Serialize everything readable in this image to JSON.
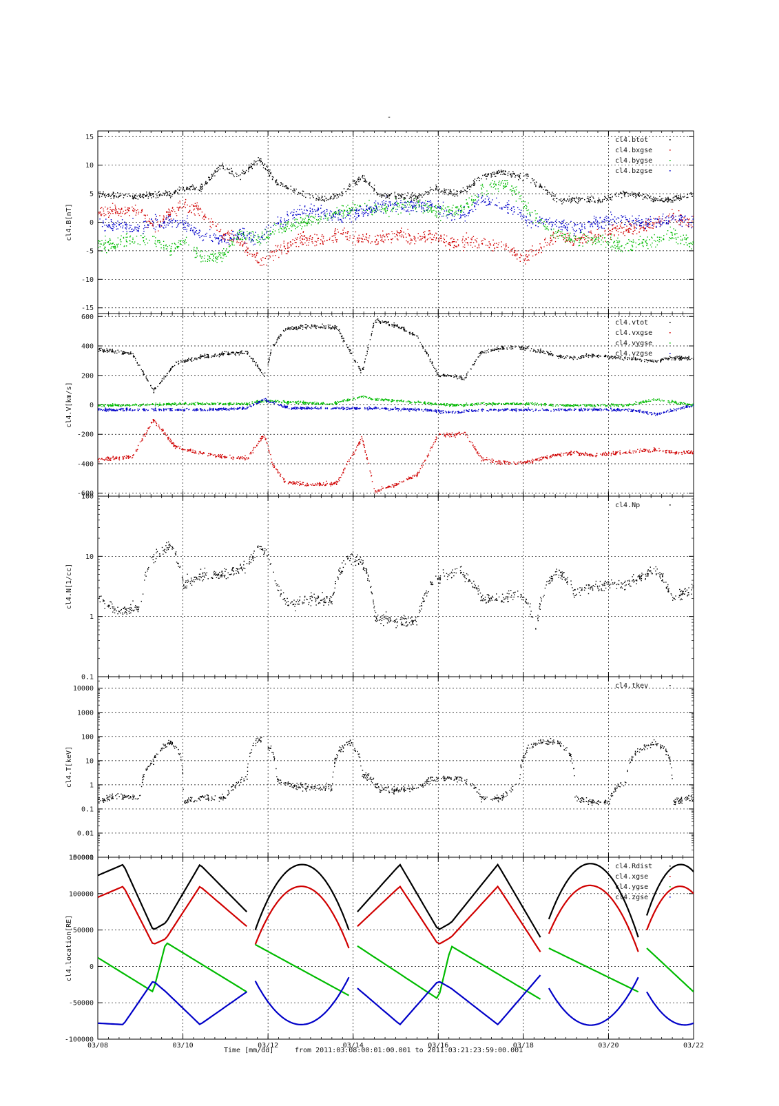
{
  "page": {
    "top_mark": "-"
  },
  "time_axis": {
    "start_day": 8,
    "end_day": 22,
    "ticks": [
      8,
      10,
      12,
      14,
      16,
      18,
      20,
      22
    ],
    "tick_labels": [
      "03/08",
      "03/10",
      "03/12",
      "03/14",
      "03/16",
      "03/18",
      "03/20",
      "03/22"
    ],
    "minor_ticks_per_day": 4
  },
  "footer": {
    "xlabel": "Time [mm/dd]",
    "range_text": "from 2011:03:08:00:01:00.001  to  2011:03:21:23:59:00.001"
  },
  "colors": {
    "black": "#000000",
    "red": "#d00000",
    "blue": "#0000c8",
    "green": "#00bb00"
  },
  "chart_data": [
    {
      "id": "B",
      "type": "scatter",
      "ylabel": "cl4.B[nT]",
      "scale": "linear",
      "ylim": [
        -16,
        16
      ],
      "yticks": [
        -15,
        -10,
        -5,
        0,
        5,
        10,
        15
      ],
      "ytick_labels": [
        "-15",
        "-10",
        "-5",
        "0",
        "5",
        "10",
        "15"
      ],
      "grid": true,
      "legend_position": "top-right",
      "series": [
        {
          "name": "cl4.btot",
          "color": "#000000",
          "noise": 0.5,
          "x": [
            8.0,
            9.0,
            9.3,
            9.7,
            10.0,
            10.4,
            10.9,
            11.3,
            11.8,
            12.2,
            12.8,
            13.3,
            13.7,
            14.2,
            14.6,
            15.1,
            15.5,
            15.9,
            16.4,
            16.7,
            17.0,
            17.5,
            17.9,
            18.1,
            18.8,
            19.2,
            19.8,
            20.3,
            20.7,
            21.1,
            21.5,
            22.0
          ],
          "y": [
            5,
            4.5,
            5,
            5,
            6,
            6,
            10,
            8,
            11,
            7,
            5,
            4,
            5,
            8,
            5,
            4.5,
            4.5,
            6,
            5,
            6,
            8,
            9,
            8,
            8,
            4,
            4,
            4,
            5,
            5,
            4,
            4,
            5
          ]
        },
        {
          "name": "cl4.bxgse",
          "color": "#d00000",
          "noise": 1.0,
          "x": [
            8.0,
            9.0,
            9.3,
            9.7,
            10.0,
            10.4,
            10.9,
            11.3,
            11.8,
            12.2,
            12.8,
            13.3,
            13.7,
            14.2,
            14.6,
            15.1,
            15.5,
            15.9,
            16.4,
            16.7,
            17.0,
            17.5,
            17.9,
            18.1,
            18.8,
            19.2,
            19.8,
            20.3,
            20.7,
            21.1,
            21.5,
            22.0
          ],
          "y": [
            2,
            2,
            -1,
            2,
            3,
            2,
            -2,
            -3,
            -7,
            -5,
            -3,
            -3,
            -2,
            -3,
            -3,
            -2,
            -3,
            -2,
            -4,
            -3,
            -4,
            -4,
            -6,
            -6,
            -2,
            -3,
            -2,
            -1,
            -1,
            0,
            1,
            0
          ]
        },
        {
          "name": "cl4.bygse",
          "color": "#00bb00",
          "noise": 1.0,
          "x": [
            8.0,
            9.0,
            9.3,
            9.7,
            10.0,
            10.4,
            10.9,
            11.3,
            11.8,
            12.2,
            12.8,
            13.3,
            13.7,
            14.2,
            14.6,
            15.1,
            15.5,
            15.9,
            16.4,
            16.7,
            17.0,
            17.5,
            17.9,
            18.1,
            18.8,
            19.2,
            19.8,
            20.3,
            20.7,
            21.1,
            21.5,
            22.0
          ],
          "y": [
            -4,
            -3,
            -3,
            -5,
            -3,
            -6,
            -6,
            -2,
            -3,
            -1,
            0,
            1,
            2,
            3,
            2,
            3,
            3,
            2,
            2,
            3,
            6,
            7,
            5,
            2,
            -2,
            -3,
            -3,
            -4,
            -4,
            -3,
            -2,
            -4
          ]
        },
        {
          "name": "cl4.bzgse",
          "color": "#0000c8",
          "noise": 1.0,
          "x": [
            8.0,
            9.0,
            9.3,
            9.7,
            10.0,
            10.4,
            10.9,
            11.3,
            11.8,
            12.2,
            12.8,
            13.3,
            13.7,
            14.2,
            14.6,
            15.1,
            15.5,
            15.9,
            16.4,
            16.7,
            17.0,
            17.5,
            17.9,
            18.1,
            18.8,
            19.2,
            19.8,
            20.3,
            20.7,
            21.1,
            21.5,
            22.0
          ],
          "y": [
            0,
            -1,
            0,
            0,
            0,
            -2,
            -3,
            -2,
            -3,
            0,
            2,
            2,
            1,
            2,
            3,
            3,
            3,
            3,
            1,
            2,
            4,
            3,
            2,
            0,
            0,
            -1,
            0,
            1,
            0,
            0,
            1,
            0
          ]
        }
      ]
    },
    {
      "id": "V",
      "type": "scatter",
      "ylabel": "cl4.V[km/s]",
      "scale": "linear",
      "ylim": [
        -620,
        620
      ],
      "yticks": [
        -600,
        -400,
        -200,
        0,
        200,
        400,
        600
      ],
      "ytick_labels": [
        "-600",
        "-400",
        "-200",
        "0",
        "200",
        "400",
        "600"
      ],
      "grid": true,
      "legend_position": "top-right",
      "series": [
        {
          "name": "cl4.vtot",
          "color": "#000000",
          "noise": 12,
          "x": [
            8.0,
            8.8,
            9.0,
            9.3,
            9.8,
            10.0,
            10.5,
            11.0,
            11.5,
            11.9,
            12.1,
            12.4,
            13.0,
            13.6,
            14.2,
            14.5,
            15.0,
            15.5,
            16.0,
            16.4,
            16.6,
            17.0,
            17.5,
            18.0,
            18.9,
            19.2,
            19.5,
            20.0,
            20.4,
            21.1,
            21.5,
            22.0
          ],
          "y": [
            380,
            350,
            250,
            100,
            280,
            300,
            330,
            350,
            360,
            200,
            400,
            520,
            540,
            530,
            220,
            580,
            540,
            470,
            200,
            200,
            180,
            360,
            390,
            390,
            330,
            320,
            340,
            330,
            320,
            300,
            320,
            320
          ]
        },
        {
          "name": "cl4.vxgse",
          "color": "#d00000",
          "noise": 12,
          "x": [
            8.0,
            8.8,
            9.0,
            9.3,
            9.8,
            10.0,
            10.5,
            11.0,
            11.5,
            11.9,
            12.1,
            12.4,
            13.0,
            13.6,
            14.2,
            14.5,
            15.0,
            15.5,
            16.0,
            16.4,
            16.6,
            17.0,
            17.5,
            18.0,
            18.9,
            19.2,
            19.5,
            20.0,
            20.4,
            21.1,
            21.5,
            22.0
          ],
          "y": [
            -370,
            -350,
            -250,
            -100,
            -280,
            -300,
            -330,
            -350,
            -360,
            -200,
            -400,
            -520,
            -540,
            -530,
            -220,
            -580,
            -540,
            -470,
            -200,
            -200,
            -180,
            -360,
            -390,
            -390,
            -330,
            -320,
            -340,
            -330,
            -320,
            -300,
            -320,
            -320
          ]
        },
        {
          "name": "cl4.vygse",
          "color": "#00bb00",
          "noise": 8,
          "x": [
            8.0,
            9.0,
            9.8,
            10.5,
            11.5,
            11.9,
            12.5,
            13.5,
            14.2,
            14.5,
            15.5,
            16.4,
            17.0,
            18.0,
            19.0,
            20.0,
            20.4,
            21.1,
            22.0
          ],
          "y": [
            0,
            0,
            10,
            10,
            10,
            30,
            20,
            10,
            60,
            40,
            20,
            0,
            10,
            10,
            0,
            0,
            0,
            40,
            0
          ]
        },
        {
          "name": "cl4.vzgse",
          "color": "#0000c8",
          "noise": 8,
          "x": [
            8.0,
            9.0,
            9.8,
            10.5,
            11.5,
            11.9,
            12.5,
            13.5,
            14.2,
            14.5,
            15.5,
            16.4,
            17.0,
            18.0,
            19.0,
            20.0,
            20.4,
            21.1,
            22.0
          ],
          "y": [
            -30,
            -30,
            -30,
            -30,
            -20,
            40,
            -20,
            -20,
            -20,
            -20,
            -30,
            -50,
            -30,
            -30,
            -30,
            -30,
            -30,
            -60,
            0
          ]
        }
      ]
    },
    {
      "id": "N",
      "type": "scatter",
      "ylabel": "cl4.N[1/cc]",
      "scale": "log",
      "ylim": [
        0.1,
        100
      ],
      "yticks": [
        0.1,
        1,
        10,
        100
      ],
      "ytick_labels": [
        "0.1",
        "1",
        "10",
        "100"
      ],
      "grid": true,
      "legend_position": "top-right",
      "series": [
        {
          "name": "cl4.Np",
          "color": "#000000",
          "noise": 0.08,
          "x": [
            8.0,
            8.5,
            9.0,
            9.3,
            9.7,
            10.0,
            10.5,
            11.0,
            11.5,
            11.8,
            12.2,
            12.5,
            13.0,
            13.5,
            13.9,
            14.2,
            14.5,
            15.0,
            15.5,
            15.9,
            16.5,
            17.0,
            17.5,
            17.9,
            18.3,
            18.8,
            19.2,
            19.5,
            20.0,
            20.4,
            21.1,
            21.5,
            22.0
          ],
          "y": [
            2,
            1.2,
            1.5,
            10,
            15,
            3.5,
            5,
            5,
            7,
            15,
            3,
            1.5,
            2,
            2,
            10,
            8,
            1,
            0.8,
            0.9,
            4,
            6,
            2,
            2,
            2.5,
            0.6,
            6,
            2.5,
            3,
            3.5,
            3.5,
            6,
            2,
            3
          ]
        }
      ]
    },
    {
      "id": "T",
      "type": "scatter",
      "ylabel": "cl4.T[keV]",
      "scale": "log",
      "ylim": [
        0.001,
        30000
      ],
      "yticks": [
        0.001,
        0.01,
        0.1,
        1,
        10,
        100,
        1000,
        10000
      ],
      "ytick_labels": [
        "0.001",
        "0.01",
        "0.1",
        "1",
        "10",
        "100",
        "1000",
        "10000"
      ],
      "grid": true,
      "legend_position": "top-right",
      "series": [
        {
          "name": "cl4.tkev",
          "color": "#000000",
          "noise": 0.12,
          "x": [
            8.0,
            8.5,
            9.0,
            9.3,
            9.7,
            10.0,
            10.5,
            11.0,
            11.5,
            11.8,
            12.2,
            12.6,
            13.0,
            13.5,
            13.9,
            14.2,
            14.6,
            15.0,
            15.5,
            15.9,
            16.5,
            17.0,
            17.5,
            17.9,
            18.3,
            18.8,
            19.2,
            19.6,
            20.0,
            20.4,
            21.1,
            21.5,
            22.0
          ],
          "y": [
            0.25,
            0.35,
            0.3,
            10,
            60,
            0.2,
            0.3,
            0.3,
            2,
            80,
            1.5,
            1,
            0.8,
            0.8,
            60,
            3,
            0.7,
            0.6,
            0.8,
            1.8,
            2,
            0.3,
            0.3,
            1,
            60,
            60,
            0.3,
            0.2,
            0.2,
            1.5,
            60,
            0.2,
            0.3
          ]
        }
      ]
    },
    {
      "id": "location",
      "type": "line",
      "ylabel": "cl4.location[RE]",
      "scale": "linear",
      "ylim": [
        -100000,
        150000
      ],
      "yticks": [
        -100000,
        -50000,
        0,
        50000,
        100000,
        150000
      ],
      "ytick_labels": [
        "-100000",
        "-50000",
        "0",
        "50000",
        "100000",
        "150000"
      ],
      "grid": true,
      "legend_position": "top-right",
      "series": [
        {
          "name": "cl4.Rdist",
          "color": "#000000",
          "x": [
            8.0,
            8.6,
            9.3,
            9.6,
            10.4,
            11.5,
            11.7,
            12.8,
            13.9,
            14.1,
            15.1,
            16.0,
            16.3,
            17.4,
            18.4,
            18.6,
            19.7,
            20.7,
            20.9,
            21.7,
            22.0
          ],
          "y": [
            125000,
            140000,
            50000,
            60000,
            140000,
            75000,
            50000,
            140000,
            50000,
            75000,
            140000,
            50000,
            60000,
            140000,
            40000,
            65000,
            140000,
            40000,
            70000,
            140000,
            130000
          ]
        },
        {
          "name": "cl4.xgse",
          "color": "#d00000",
          "x": [
            8.0,
            8.6,
            9.3,
            9.6,
            10.4,
            11.5,
            11.7,
            12.8,
            13.9,
            14.1,
            15.1,
            16.0,
            16.3,
            17.4,
            18.4,
            18.6,
            19.7,
            20.7,
            20.9,
            21.7,
            22.0
          ],
          "y": [
            95000,
            110000,
            30000,
            38000,
            110000,
            55000,
            30000,
            110000,
            25000,
            55000,
            110000,
            30000,
            40000,
            110000,
            20000,
            45000,
            110000,
            20000,
            50000,
            110000,
            100000
          ]
        },
        {
          "name": "cl4.ygse",
          "color": "#00bb00",
          "x": [
            8.0,
            9.3,
            9.6,
            11.5,
            11.7,
            13.9,
            14.1,
            16.0,
            16.3,
            18.4,
            18.6,
            20.7,
            20.9,
            22.0
          ],
          "y": [
            12000,
            -35000,
            33000,
            -35000,
            30000,
            -40000,
            28000,
            -45000,
            28000,
            -45000,
            25000,
            -35000,
            25000,
            -35000
          ]
        },
        {
          "name": "cl4.zgse",
          "color": "#0000c8",
          "x": [
            8.0,
            8.6,
            9.3,
            9.6,
            10.4,
            11.5,
            11.7,
            12.8,
            13.9,
            14.1,
            15.1,
            16.0,
            16.3,
            17.4,
            18.4,
            18.6,
            19.7,
            20.7,
            20.9,
            21.7,
            22.0
          ],
          "y": [
            -78000,
            -80000,
            -20000,
            -35000,
            -80000,
            -35000,
            -20000,
            -80000,
            -15000,
            -30000,
            -80000,
            -20000,
            -30000,
            -80000,
            -12000,
            -30000,
            -80000,
            -15000,
            -35000,
            -80000,
            -78000
          ]
        }
      ]
    }
  ]
}
